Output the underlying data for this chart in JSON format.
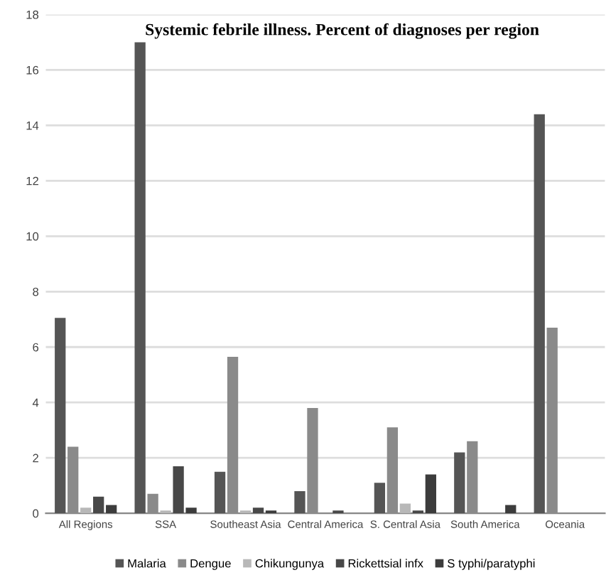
{
  "chart_data": {
    "type": "bar",
    "title": "Systemic febrile illness. Percent of diagnoses per region",
    "categories": [
      "All Regions",
      "SSA",
      "Southeast Asia",
      "Central America",
      "S. Central Asia",
      "South America",
      "Oceania"
    ],
    "series": [
      {
        "name": "Malaria",
        "color": "#555555",
        "values": [
          7.05,
          17.0,
          1.5,
          0.8,
          1.1,
          2.2,
          14.4
        ]
      },
      {
        "name": "Dengue",
        "color": "#8a8a8a",
        "values": [
          2.4,
          0.7,
          5.65,
          3.8,
          3.1,
          2.6,
          6.7
        ]
      },
      {
        "name": "Chikungunya",
        "color": "#b8b8b8",
        "values": [
          0.2,
          0.1,
          0.1,
          0,
          0.35,
          0,
          0
        ]
      },
      {
        "name": "Rickettsial infx",
        "color": "#484848",
        "values": [
          0.6,
          1.7,
          0.2,
          0.1,
          0.1,
          0,
          0
        ]
      },
      {
        "name": "S typhi/paratyphi",
        "color": "#3c3c3c",
        "values": [
          0.3,
          0.2,
          0.1,
          0,
          1.4,
          0.3,
          0
        ]
      }
    ],
    "ylim": [
      0,
      18
    ],
    "yticks": [
      0,
      2,
      4,
      6,
      8,
      10,
      12,
      14,
      16,
      18
    ],
    "grid": "y",
    "legend": "bottom"
  }
}
